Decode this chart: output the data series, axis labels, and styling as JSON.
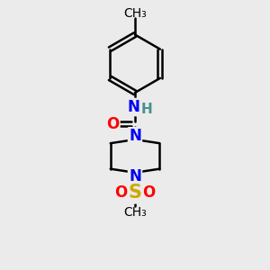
{
  "background_color": "#ebebeb",
  "bond_color": "#000000",
  "bond_width": 1.8,
  "atom_colors": {
    "N": "#0000ee",
    "O": "#ff0000",
    "S": "#ccaa00",
    "C": "#000000",
    "H": "#4a9090"
  },
  "font_size_N": 12,
  "font_size_O": 12,
  "font_size_S": 13,
  "font_size_H": 11,
  "font_size_methyl": 10,
  "figsize": [
    3.0,
    3.0
  ],
  "dpi": 100,
  "xlim": [
    0,
    10
  ],
  "ylim": [
    0,
    12
  ]
}
